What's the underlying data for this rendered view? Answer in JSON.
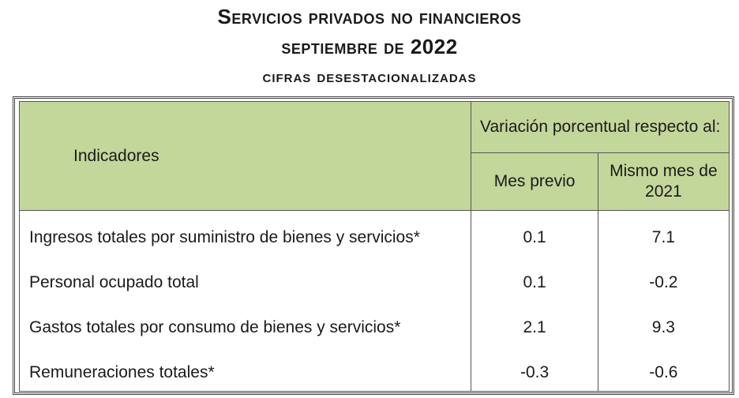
{
  "title": {
    "line1": "Servicios privados no financieros",
    "line2": "septiembre de 2022",
    "line3": "cifras desestacionalizadas"
  },
  "table": {
    "header": {
      "indicadores": "Indicadores",
      "variacion": "Variación porcentual respecto al:",
      "mes_previo": "Mes previo",
      "mismo_mes": "Mismo mes de 2021"
    },
    "rows": [
      {
        "indicador": "Ingresos totales por suministro de bienes y servicios*",
        "mes_previo": "0.1",
        "mismo_mes": "7.1"
      },
      {
        "indicador": "Personal ocupado total",
        "mes_previo": "0.1",
        "mismo_mes": "-0.2"
      },
      {
        "indicador": "Gastos totales por consumo de bienes y servicios*",
        "mes_previo": "2.1",
        "mismo_mes": "9.3"
      },
      {
        "indicador": "Remuneraciones totales*",
        "mes_previo": "-0.3",
        "mismo_mes": "-0.6"
      }
    ]
  },
  "colors": {
    "header_fill": "#c4d79b"
  }
}
